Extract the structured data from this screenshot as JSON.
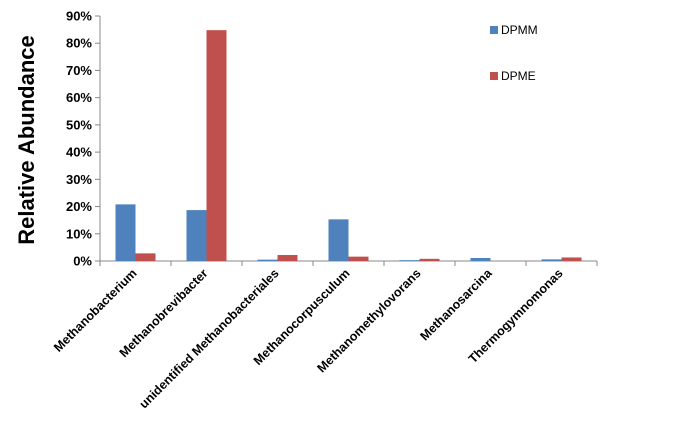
{
  "chart_data": {
    "type": "bar",
    "ylabel": "Relative Abundance",
    "ylim": [
      0,
      90
    ],
    "yticks": [
      "0%",
      "10%",
      "20%",
      "30%",
      "40%",
      "50%",
      "60%",
      "70%",
      "80%",
      "90%"
    ],
    "categories": [
      "Methanobacterium",
      "Methanobrevibacter",
      "unidentified Methanobacteriales",
      "Methanocorpusculum",
      "Methanomethylovorans",
      "Methanosarcina",
      "Thermogymnomonas"
    ],
    "series": [
      {
        "name": "DPMM",
        "color": "#4F81BD",
        "values": [
          20.8,
          18.7,
          0.5,
          15.3,
          0.3,
          1.1,
          0.6
        ]
      },
      {
        "name": "DPME",
        "color": "#C0504D",
        "values": [
          2.8,
          84.8,
          2.2,
          1.6,
          0.8,
          0.0,
          1.3
        ]
      }
    ],
    "legend": "top-right",
    "grid": false
  }
}
